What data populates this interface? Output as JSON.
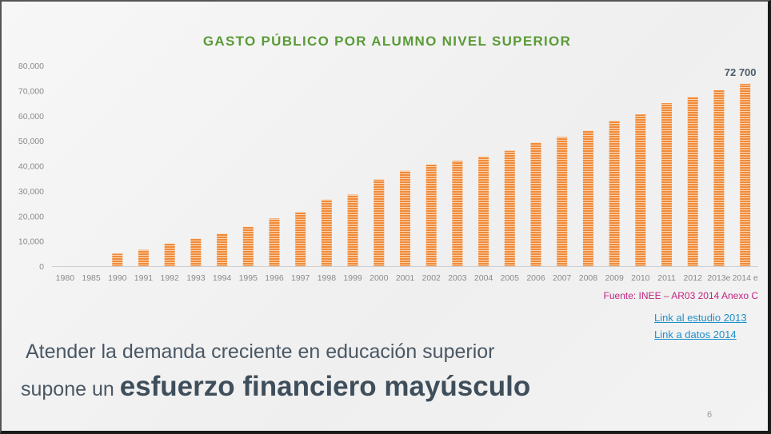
{
  "slide": {
    "source": "Fuente: INEE – AR03 2014 Anexo C",
    "link_study": "Link al estudio 2013",
    "link_data": "Link a datos 2014",
    "headline_line1": "Atender la demanda creciente  en educación superior",
    "headline_line2_prefix": "supone un ",
    "headline_line2_bold": "esfuerzo financiero mayúsculo",
    "page_number": "6"
  },
  "colors": {
    "bar": "#f08b3a",
    "bar_stripe": "#fbd2ad",
    "title": "#5a9b37",
    "axis": "#cfcfcf"
  },
  "chart_data": {
    "type": "bar",
    "title": "GASTO PÚBLICO POR ALUMNO NIVEL SUPERIOR",
    "categories": [
      "1980",
      "1985",
      "1990",
      "1991",
      "1992",
      "1993",
      "1994",
      "1995",
      "1996",
      "1997",
      "1998",
      "1999",
      "2000",
      "2001",
      "2002",
      "2003",
      "2004",
      "2005",
      "2006",
      "2007",
      "2008",
      "2009",
      "2010",
      "2011",
      "2012",
      "2013e",
      "2014 e"
    ],
    "values": [
      0,
      0,
      5000,
      6500,
      9000,
      11000,
      13000,
      15700,
      19000,
      21500,
      26500,
      28500,
      34500,
      38000,
      40500,
      42000,
      43700,
      46000,
      49300,
      51500,
      54000,
      58000,
      60500,
      65000,
      67500,
      70200,
      72700
    ],
    "ylim": [
      0,
      80000
    ],
    "yticks": [
      "0",
      "10,000",
      "20,000",
      "30,000",
      "40,000",
      "50,000",
      "60,000",
      "70,000",
      "80,000"
    ],
    "ytick_values": [
      0,
      10000,
      20000,
      30000,
      40000,
      50000,
      60000,
      70000,
      80000
    ],
    "value_label": "72 700",
    "grid": false,
    "legend": "none"
  }
}
